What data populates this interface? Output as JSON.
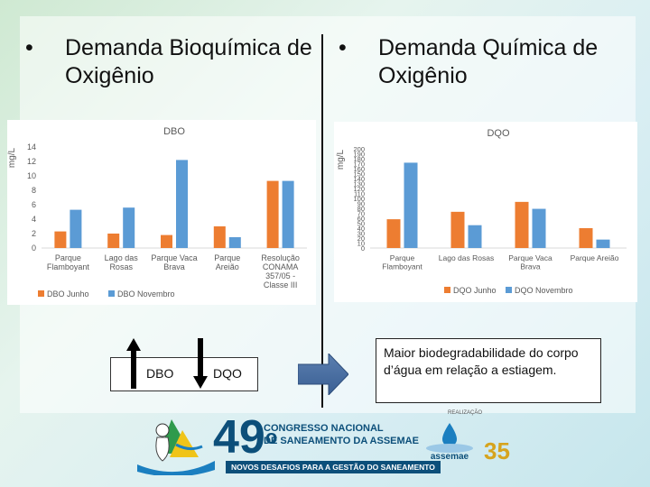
{
  "bullets": {
    "left": "Demanda Bioquímica de\nOxigênio",
    "right": "Demanda Química de\nOxigênio",
    "marker": "•"
  },
  "legend_arrows": {
    "dbo": "DBO",
    "dqo": "DQO"
  },
  "note": "Maior biodegradabilidade do corpo d’água em relação a estiagem.",
  "footer": {
    "number": "49",
    "degree": "o",
    "line1": "CONGRESSO NACIONAL",
    "line2": "DE SANEAMENTO DA ASSEMAE",
    "tagline": "NOVOS DESAFIOS PARA A GESTÃO DO SANEAMENTO",
    "realizacao": "REALIZAÇÃO",
    "brand": "assemae",
    "anniversary": "35"
  },
  "colors": {
    "orange": "#ED7D31",
    "blue": "#5B9BD5",
    "navy": "#0c4f7a"
  },
  "chart_data": [
    {
      "type": "bar",
      "title": "DBO",
      "ylabel": "mg/L",
      "ylim": [
        0,
        14
      ],
      "yticks": [
        0,
        2,
        4,
        6,
        8,
        10,
        12,
        14
      ],
      "categories": [
        "Parque\nFlamboyant",
        "Lago das\nRosas",
        "Parque Vaca\nBrava",
        "Parque\nAreião",
        "Resolução\nCONAMA\n357/05 -\nClasse III"
      ],
      "series": [
        {
          "name": "DBO Junho",
          "values": [
            2.3,
            2.0,
            1.8,
            3.0,
            9.3
          ]
        },
        {
          "name": "DBO Novembro",
          "values": [
            5.3,
            5.6,
            12.2,
            1.5,
            9.3
          ]
        }
      ],
      "legend": "bottom"
    },
    {
      "type": "bar",
      "title": "DQO",
      "ylabel": "mg/L",
      "ylim": [
        0,
        200
      ],
      "yticks": [
        0,
        10,
        20,
        30,
        40,
        50,
        60,
        70,
        80,
        90,
        100,
        110,
        120,
        130,
        140,
        150,
        160,
        170,
        180,
        190,
        200
      ],
      "categories": [
        "Parque\nFlamboyant",
        "Lago das Rosas",
        "Parque Vaca\nBrava",
        "Parque Areião"
      ],
      "series": [
        {
          "name": "DQO Junho",
          "values": [
            58,
            73,
            93,
            40
          ]
        },
        {
          "name": "DQO Novembro",
          "values": [
            172,
            46,
            79,
            17
          ]
        }
      ],
      "legend": "bottom"
    }
  ]
}
